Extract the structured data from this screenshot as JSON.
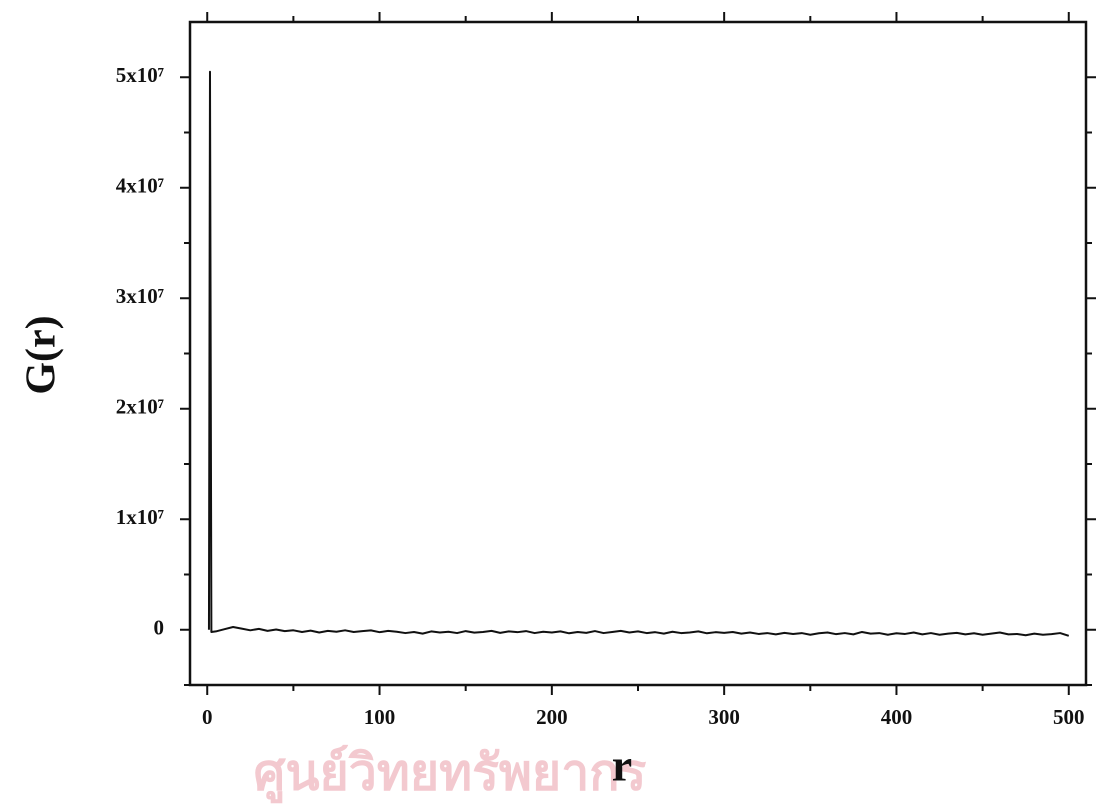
{
  "chart_data": {
    "type": "line",
    "x_label": "r",
    "y_label": "G(r)",
    "watermark": "ศูนย์วิทยทรัพยากร",
    "xlim": [
      -10,
      510
    ],
    "ylim": [
      -5000000,
      55000000
    ],
    "xticks": [
      0,
      100,
      200,
      300,
      400,
      500
    ],
    "xminorticks": [
      50,
      150,
      250,
      350,
      450
    ],
    "yticks": [
      0,
      {
        "value": 10000000,
        "label": "1x10⁷"
      },
      {
        "value": 20000000,
        "label": "2x10⁷"
      },
      {
        "value": 30000000,
        "label": "3x10⁷"
      },
      {
        "value": 40000000,
        "label": "4x10⁷"
      },
      {
        "value": 50000000,
        "label": "5x10⁷"
      }
    ],
    "yminorticks": [
      -5000000,
      5000000,
      15000000,
      25000000,
      35000000,
      45000000
    ],
    "series": [
      {
        "color": "#111111",
        "x": [
          1,
          1.6,
          2.4,
          5,
          10,
          15,
          20,
          25,
          30,
          35,
          40,
          45,
          50,
          55,
          60,
          65,
          70,
          75,
          80,
          85,
          90,
          95,
          100,
          105,
          110,
          115,
          120,
          125,
          130,
          135,
          140,
          145,
          150,
          155,
          160,
          165,
          170,
          175,
          180,
          185,
          190,
          195,
          200,
          205,
          210,
          215,
          220,
          225,
          230,
          235,
          240,
          245,
          250,
          255,
          260,
          265,
          270,
          275,
          280,
          285,
          290,
          295,
          300,
          305,
          310,
          315,
          320,
          325,
          330,
          335,
          340,
          345,
          350,
          355,
          360,
          365,
          370,
          375,
          380,
          385,
          390,
          395,
          400,
          405,
          410,
          415,
          420,
          425,
          430,
          435,
          440,
          445,
          450,
          455,
          460,
          465,
          470,
          475,
          480,
          485,
          490,
          495,
          500
        ],
        "values": [
          0,
          50500000,
          -200000,
          -150000,
          50000,
          250000,
          100000,
          -50000,
          80000,
          -100000,
          20000,
          -120000,
          -50000,
          -200000,
          -80000,
          -250000,
          -100000,
          -180000,
          -50000,
          -200000,
          -120000,
          -60000,
          -220000,
          -100000,
          -180000,
          -300000,
          -200000,
          -350000,
          -150000,
          -250000,
          -180000,
          -300000,
          -120000,
          -260000,
          -200000,
          -100000,
          -280000,
          -150000,
          -220000,
          -120000,
          -300000,
          -180000,
          -250000,
          -150000,
          -320000,
          -200000,
          -280000,
          -120000,
          -300000,
          -200000,
          -100000,
          -250000,
          -150000,
          -300000,
          -220000,
          -350000,
          -180000,
          -300000,
          -250000,
          -150000,
          -320000,
          -220000,
          -280000,
          -200000,
          -350000,
          -250000,
          -380000,
          -300000,
          -420000,
          -280000,
          -380000,
          -300000,
          -450000,
          -320000,
          -250000,
          -400000,
          -300000,
          -420000,
          -200000,
          -350000,
          -300000,
          -450000,
          -320000,
          -380000,
          -250000,
          -420000,
          -300000,
          -450000,
          -350000,
          -280000,
          -420000,
          -320000,
          -450000,
          -350000,
          -250000,
          -420000,
          -380000,
          -500000,
          -350000,
          -450000,
          -400000,
          -300000,
          -550000
        ]
      }
    ]
  }
}
